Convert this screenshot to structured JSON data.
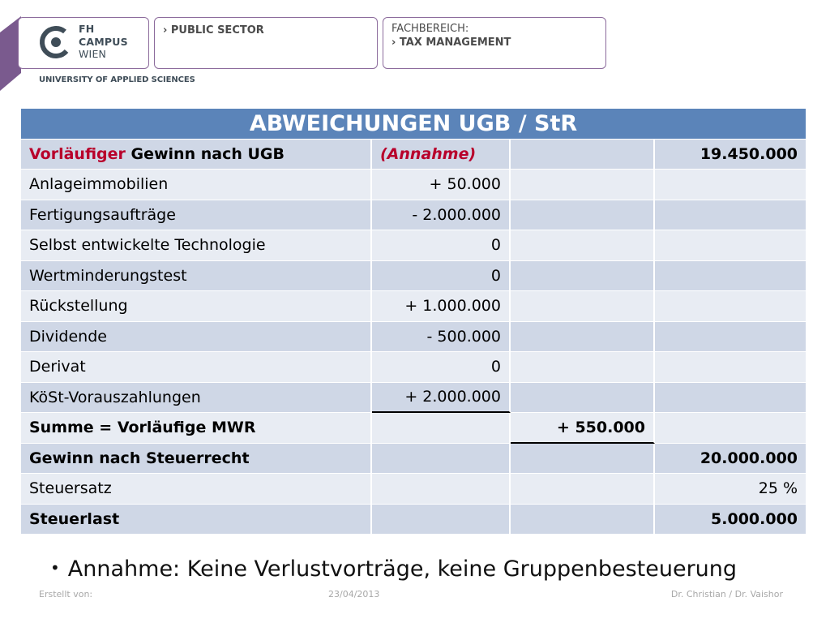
{
  "header": {
    "logo_lines": [
      "FH",
      "CAMPUS",
      "WIEN"
    ],
    "university": "UNIVERSITY OF APPLIED SCIENCES",
    "sector": "PUBLIC SECTOR",
    "fach_label": "FACHBEREICH:",
    "fach_value": "TAX MANAGEMENT",
    "colors": {
      "purple": "#7a5a8e",
      "logo_dark": "#3f4d58"
    }
  },
  "table": {
    "title": "ABWEICHUNGEN UGB / StR",
    "row0": {
      "label_highlight": "Vorläufiger",
      "label_rest": " Gewinn nach UGB",
      "note": "(Annahme)",
      "total": "19.450.000"
    },
    "rows": [
      {
        "label": "Anlageimmobilien",
        "value": "+ 50.000"
      },
      {
        "label": "Fertigungsaufträge",
        "value": "- 2.000.000"
      },
      {
        "label": "Selbst entwickelte Technologie",
        "value": "0"
      },
      {
        "label": "Wertminderungstest",
        "value": "0"
      },
      {
        "label": "Rückstellung",
        "value": "+ 1.000.000"
      },
      {
        "label": "Dividende",
        "value": "- 500.000"
      },
      {
        "label": "Derivat",
        "value": "0"
      },
      {
        "label": "KöSt-Vorauszahlungen",
        "value": "+ 2.000.000"
      }
    ],
    "summe": {
      "label": "Summe = Vorläufige MWR",
      "value": "+ 550.000"
    },
    "gewinn": {
      "label": "Gewinn nach Steuerrecht",
      "value": "20.000.000"
    },
    "steuersatz": {
      "label": "Steuersatz",
      "value": "25 %"
    },
    "steuerlast": {
      "label": "Steuerlast",
      "value": "5.000.000"
    },
    "colors": {
      "header": "#5b84b9",
      "row_dark": "#cfd7e6",
      "row_light": "#e8ecf3",
      "highlight": "#b8002b"
    }
  },
  "note": "Annahme: Keine Verlustvorträge, keine Gruppenbesteuerung",
  "footer": {
    "created_by": "Erstellt von:",
    "date": "23/04/2013",
    "author": "Dr. Christian / Dr. Vaishor"
  }
}
